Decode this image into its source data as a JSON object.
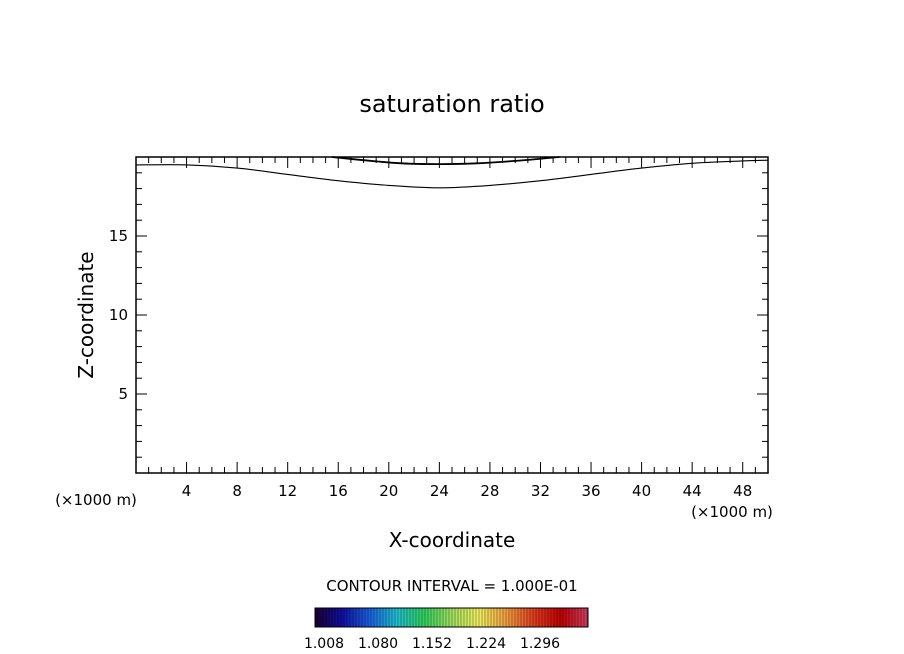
{
  "chart_data": {
    "type": "contour",
    "title": "saturation ratio",
    "xlabel": "X-coordinate",
    "ylabel": "Z-coordinate",
    "x_unit_left": "(×1000 m)",
    "x_unit_right": "(×1000 m)",
    "xlim": [
      0,
      50
    ],
    "ylim": [
      0,
      20
    ],
    "x_ticks": [
      4,
      8,
      12,
      16,
      20,
      24,
      28,
      32,
      36,
      40,
      44,
      48
    ],
    "y_ticks": [
      5,
      10,
      15
    ],
    "x_minor_step": 1,
    "y_minor_step": 1,
    "contour_interval_text": "CONTOUR INTERVAL = 1.000E-01",
    "contours": [
      {
        "level_index": 1,
        "points": [
          [
            0,
            19.5
          ],
          [
            4,
            19.5
          ],
          [
            8,
            19.3
          ],
          [
            12,
            18.9
          ],
          [
            16,
            18.5
          ],
          [
            20,
            18.2
          ],
          [
            24,
            18.05
          ],
          [
            28,
            18.2
          ],
          [
            32,
            18.5
          ],
          [
            36,
            18.9
          ],
          [
            40,
            19.3
          ],
          [
            44,
            19.6
          ],
          [
            48,
            19.75
          ],
          [
            50,
            19.8
          ]
        ]
      },
      {
        "level_index": 2,
        "points": [
          [
            15.5,
            20.0
          ],
          [
            18,
            19.8
          ],
          [
            21,
            19.6
          ],
          [
            24,
            19.55
          ],
          [
            27,
            19.6
          ],
          [
            30,
            19.75
          ],
          [
            33.5,
            20.0
          ]
        ]
      }
    ],
    "colorbar": {
      "labels": [
        "1.008",
        "1.080",
        "1.152",
        "1.224",
        "1.296"
      ],
      "colors": [
        "#1a0033",
        "#1010a0",
        "#1a60e0",
        "#20c0d0",
        "#30d060",
        "#a0e060",
        "#f0f060",
        "#f0a040",
        "#e04020",
        "#c00000",
        "#d04060"
      ]
    }
  }
}
